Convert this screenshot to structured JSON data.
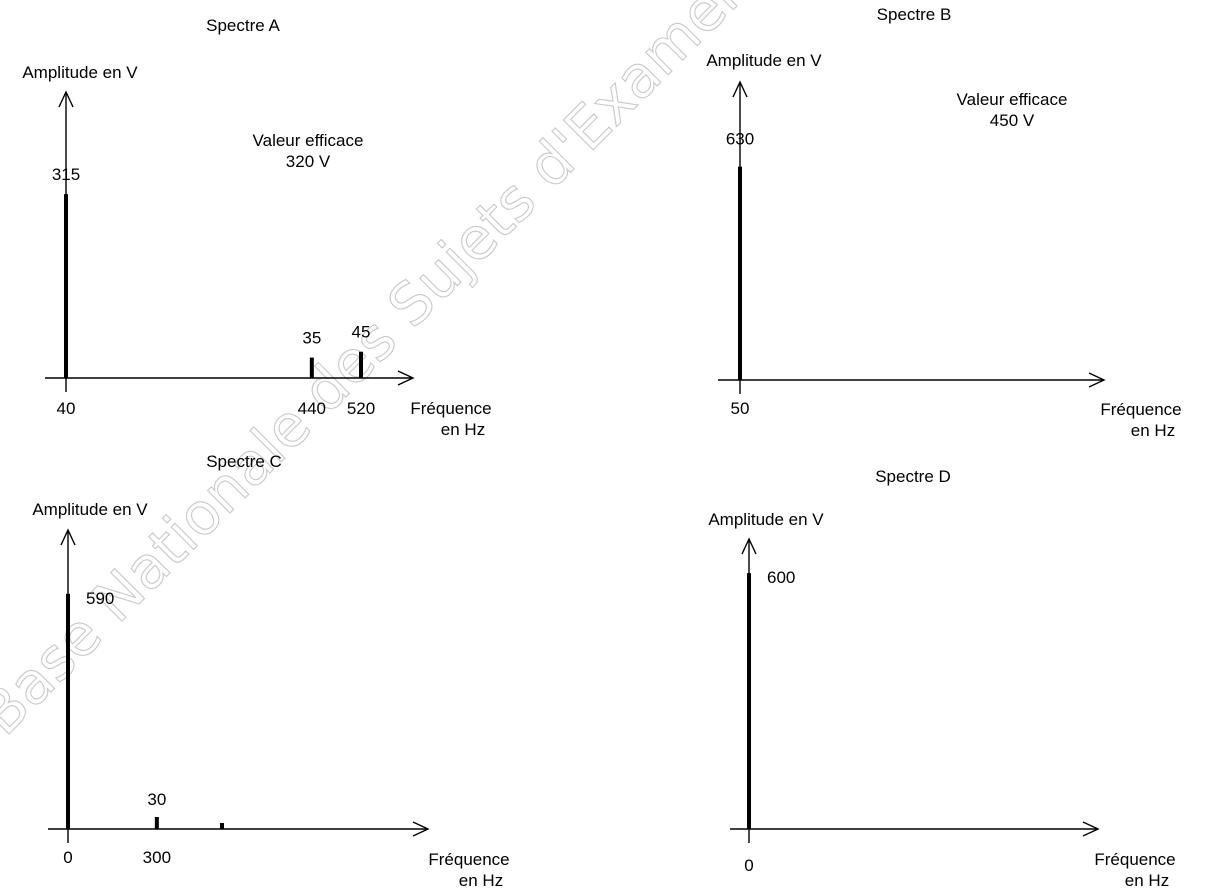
{
  "watermark": "Base Nationale des Sujets d'Examens de l'ens",
  "chart_data": [
    {
      "type": "bar",
      "title": "Spectre A",
      "ylabel": "Amplitude en V",
      "xlabel": [
        "Fréquence",
        "en Hz"
      ],
      "note": [
        "Valeur efficace",
        "320 V"
      ],
      "xlim": [
        -10,
        600
      ],
      "ylim": [
        0,
        490
      ],
      "bars": [
        {
          "x": 40,
          "value": 315,
          "x_label": "40",
          "value_label": "315"
        },
        {
          "x": 440,
          "value": 35,
          "x_label": "440",
          "value_label": "35"
        },
        {
          "x": 520,
          "value": 45,
          "x_label": "520",
          "value_label": "45"
        }
      ]
    },
    {
      "type": "bar",
      "title": "Spectre B",
      "ylabel": "Amplitude en V",
      "xlabel": [
        "Fréquence",
        "en Hz"
      ],
      "note": [
        "Valeur efficace",
        "450 V"
      ],
      "xlim": [
        -10,
        250
      ],
      "ylim": [
        0,
        880
      ],
      "bars": [
        {
          "x": 50,
          "value": 630,
          "x_label": "50",
          "value_label": "630"
        }
      ]
    },
    {
      "type": "bar",
      "title": "Spectre C",
      "ylabel": "Amplitude en V",
      "xlabel": [
        "Fréquence",
        "en Hz"
      ],
      "xlim": [
        -5,
        670
      ],
      "ylim": [
        0,
        750
      ],
      "bars": [
        {
          "x": 0,
          "value": 590,
          "x_label": "0",
          "value_label": "590"
        },
        {
          "x": 300,
          "value": 30,
          "x_label": "300",
          "value_label": "30"
        },
        {
          "x": 520,
          "value": 15,
          "x_label": "",
          "value_label": ""
        }
      ]
    },
    {
      "type": "bar",
      "title": "Spectre D",
      "ylabel": "Amplitude en V",
      "xlabel": [
        "Fréquence",
        "en Hz"
      ],
      "xlim": [
        -5,
        370
      ],
      "ylim": [
        0,
        680
      ],
      "bars": [
        {
          "x": 0,
          "value": 600,
          "x_label": "0",
          "value_label": "600"
        }
      ]
    }
  ]
}
